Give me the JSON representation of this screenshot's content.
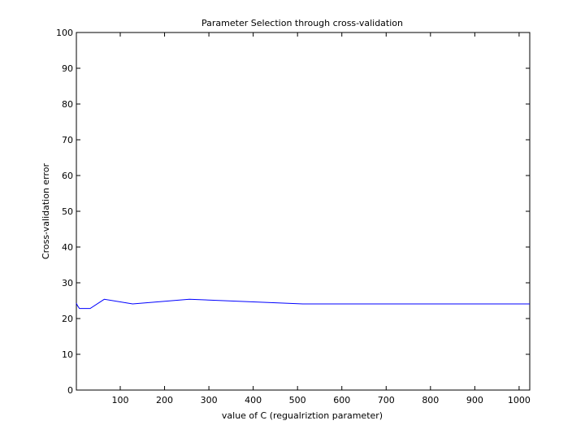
{
  "chart_data": {
    "type": "line",
    "title": "Parameter Selection through cross-validation",
    "xlabel": "value of C (regualriztion parameter)",
    "ylabel": "Cross-validation error",
    "xlim": [
      1,
      1024
    ],
    "ylim": [
      0,
      100
    ],
    "xticks": [
      100,
      200,
      300,
      400,
      500,
      600,
      700,
      800,
      900,
      1000
    ],
    "yticks": [
      0,
      10,
      20,
      30,
      40,
      50,
      60,
      70,
      80,
      90,
      100
    ],
    "grid": false,
    "series": [
      {
        "color": "#0000ff",
        "x": [
          1,
          2,
          4,
          8,
          16,
          32,
          64,
          128,
          256,
          512,
          1024
        ],
        "y": [
          24.3,
          24.0,
          23.5,
          22.8,
          22.8,
          22.8,
          25.4,
          24.1,
          25.4,
          24.1,
          24.1
        ]
      }
    ]
  }
}
